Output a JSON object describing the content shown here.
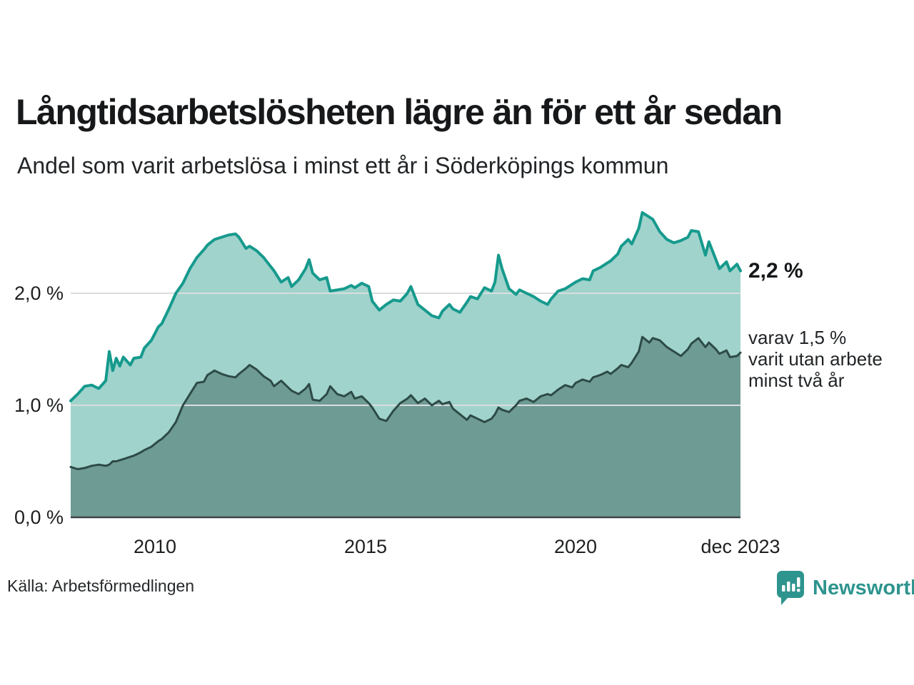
{
  "header": {
    "title": "Långtidsarbetslösheten lägre än för ett år sedan",
    "subtitle": "Andel som varit arbetslösa i minst ett år i Söderköpings kommun"
  },
  "chart": {
    "y_axis": {
      "labels": [
        "2,0 %",
        "1,0 %",
        "0,0 %"
      ]
    },
    "x_axis": {
      "labels": [
        "2010",
        "2015",
        "2020",
        "dec 2023"
      ],
      "tick_months": [
        24,
        84,
        144,
        191
      ]
    },
    "annotations": {
      "end_value": "2,2 %",
      "secondary": [
        "varav 1,5 %",
        "varit utan arbete",
        "minst två år"
      ]
    },
    "colors": {
      "gridline": "#d9dddd",
      "baseline": "#3f4547",
      "accent_teal": "#169a8d",
      "light_fill": "#a0d3cc",
      "dark_fill": "#6f9b95",
      "dark_line": "#2d4b46",
      "brand_teal": "#2e948e"
    }
  },
  "chart_data": {
    "type": "area",
    "title": "Långtidsarbetslösheten lägre än för ett år sedan",
    "subtitle": "Andel som varit arbetslösa i minst ett år i Söderköpings kommun",
    "unit": "percent",
    "x_unit": "months since January 2008",
    "x_max": 191,
    "ylim": [
      0,
      2.85
    ],
    "grid": "horizontal only",
    "legend": "none, direct labels at line ends",
    "gridlines_pct": [
      1,
      2
    ],
    "y_ticks": [
      {
        "value": 0,
        "label": "0,0 %"
      },
      {
        "value": 1,
        "label": "1,0 %"
      },
      {
        "value": 2,
        "label": "2,0 %"
      }
    ],
    "x_ticks": [
      {
        "month": 24,
        "label": "2010"
      },
      {
        "month": 84,
        "label": "2015"
      },
      {
        "month": 144,
        "label": "2020"
      },
      {
        "month": 191,
        "label": "dec 2023"
      }
    ],
    "x": [
      0,
      2,
      4,
      6,
      8,
      10,
      11,
      12,
      13,
      14,
      15,
      17,
      18,
      20,
      21,
      23,
      25,
      26,
      28,
      30,
      32,
      34,
      36,
      38,
      39,
      41,
      43,
      45,
      47,
      48,
      50,
      51,
      53,
      55,
      57,
      58,
      60,
      62,
      63,
      65,
      67,
      68,
      69,
      71,
      73,
      74,
      76,
      78,
      80,
      81,
      83,
      85,
      86,
      88,
      90,
      92,
      94,
      96,
      97,
      99,
      101,
      103,
      105,
      106,
      108,
      109,
      111,
      113,
      114,
      116,
      118,
      120,
      121,
      122,
      123,
      125,
      127,
      128,
      130,
      132,
      134,
      136,
      137,
      139,
      141,
      143,
      144,
      146,
      148,
      149,
      151,
      153,
      154,
      156,
      157,
      159,
      160,
      162,
      163,
      165,
      166,
      168,
      170,
      172,
      174,
      176,
      177,
      179,
      181,
      182,
      184,
      185,
      187,
      188,
      190,
      191
    ],
    "series": [
      {
        "name": "Andel arbetslösa minst ett år",
        "end_label": "2,2 %",
        "end_value": 2.2,
        "line_color": "#169a8d",
        "fill_color": "#a0d3cc",
        "line_width": 4,
        "values": [
          1.04,
          1.1,
          1.17,
          1.18,
          1.15,
          1.22,
          1.48,
          1.31,
          1.42,
          1.35,
          1.43,
          1.36,
          1.42,
          1.43,
          1.51,
          1.58,
          1.7,
          1.73,
          1.86,
          2.0,
          2.09,
          2.22,
          2.32,
          2.39,
          2.43,
          2.48,
          2.5,
          2.52,
          2.53,
          2.5,
          2.4,
          2.42,
          2.38,
          2.32,
          2.24,
          2.2,
          2.1,
          2.14,
          2.06,
          2.12,
          2.22,
          2.3,
          2.18,
          2.12,
          2.14,
          2.02,
          2.03,
          2.04,
          2.07,
          2.05,
          2.09,
          2.06,
          1.93,
          1.85,
          1.9,
          1.94,
          1.93,
          2.0,
          2.06,
          1.9,
          1.85,
          1.8,
          1.78,
          1.84,
          1.9,
          1.86,
          1.83,
          1.92,
          1.97,
          1.95,
          2.05,
          2.02,
          2.1,
          2.34,
          2.22,
          2.04,
          1.99,
          2.03,
          2.0,
          1.97,
          1.93,
          1.9,
          1.95,
          2.02,
          2.04,
          2.08,
          2.1,
          2.13,
          2.12,
          2.2,
          2.23,
          2.27,
          2.29,
          2.35,
          2.42,
          2.48,
          2.44,
          2.58,
          2.72,
          2.68,
          2.66,
          2.55,
          2.48,
          2.45,
          2.47,
          2.5,
          2.56,
          2.55,
          2.34,
          2.46,
          2.3,
          2.22,
          2.28,
          2.2,
          2.26,
          2.2
        ]
      },
      {
        "name": "varav arbetslösa minst två år",
        "end_label": "varav 1,5 % varit utan arbete minst två år",
        "end_value": 1.5,
        "line_color": "#2d4b46",
        "fill_color": "#6f9b95",
        "line_width": 3,
        "values": [
          0.45,
          0.43,
          0.44,
          0.46,
          0.47,
          0.46,
          0.47,
          0.5,
          0.5,
          0.51,
          0.52,
          0.54,
          0.55,
          0.58,
          0.6,
          0.63,
          0.68,
          0.7,
          0.76,
          0.85,
          1.0,
          1.1,
          1.2,
          1.21,
          1.27,
          1.31,
          1.28,
          1.26,
          1.25,
          1.28,
          1.33,
          1.36,
          1.32,
          1.26,
          1.22,
          1.17,
          1.22,
          1.16,
          1.13,
          1.1,
          1.15,
          1.19,
          1.05,
          1.04,
          1.1,
          1.17,
          1.1,
          1.08,
          1.12,
          1.06,
          1.08,
          1.02,
          0.98,
          0.88,
          0.86,
          0.95,
          1.02,
          1.06,
          1.09,
          1.02,
          1.06,
          1.0,
          1.04,
          1.01,
          1.03,
          0.97,
          0.92,
          0.87,
          0.91,
          0.88,
          0.85,
          0.88,
          0.92,
          0.98,
          0.96,
          0.94,
          1.0,
          1.04,
          1.06,
          1.03,
          1.08,
          1.1,
          1.09,
          1.14,
          1.18,
          1.16,
          1.2,
          1.23,
          1.21,
          1.25,
          1.27,
          1.3,
          1.28,
          1.33,
          1.36,
          1.34,
          1.38,
          1.48,
          1.61,
          1.56,
          1.6,
          1.58,
          1.52,
          1.48,
          1.44,
          1.5,
          1.55,
          1.6,
          1.52,
          1.56,
          1.5,
          1.46,
          1.49,
          1.43,
          1.44,
          1.47
        ]
      }
    ],
    "source": "Källa: Arbetsförmedlingen"
  },
  "footer": {
    "source": "Källa: Arbetsförmedlingen",
    "brand": "Newsworthy"
  }
}
